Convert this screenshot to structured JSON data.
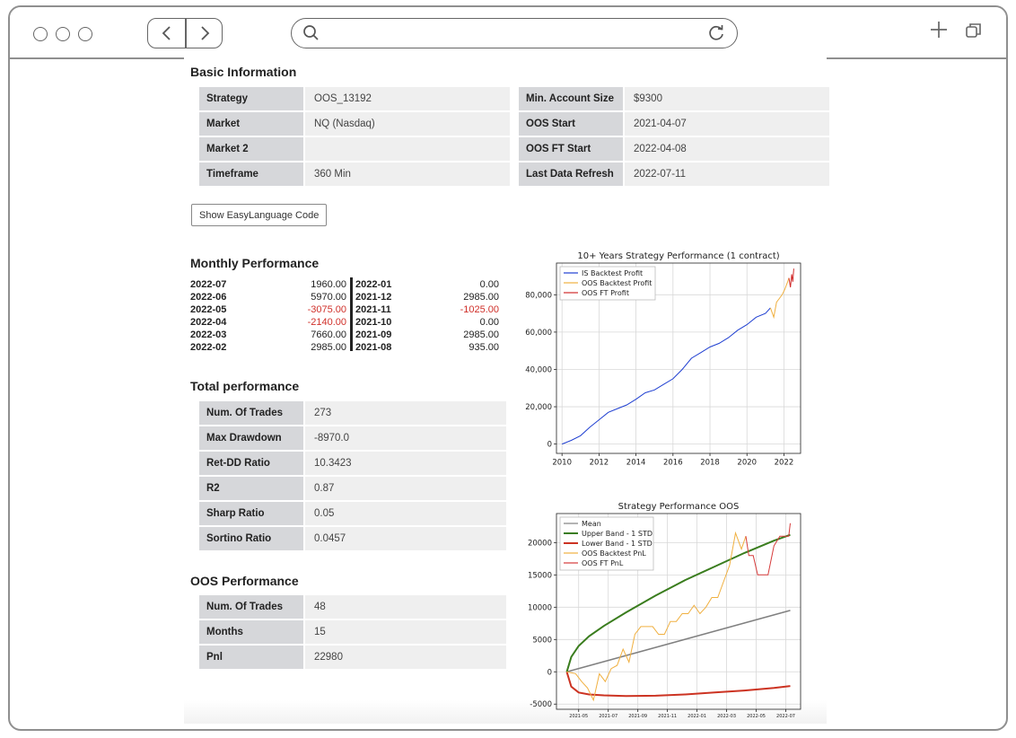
{
  "browser": {},
  "basic_info": {
    "title": "Basic Information",
    "left": [
      {
        "label": "Strategy",
        "value": "OOS_13192"
      },
      {
        "label": "Market",
        "value": "NQ (Nasdaq)"
      },
      {
        "label": "Market 2",
        "value": ""
      },
      {
        "label": "Timeframe",
        "value": "360 Min"
      }
    ],
    "right": [
      {
        "label": "Min. Account Size",
        "value": "$9300"
      },
      {
        "label": "OOS Start",
        "value": "2021-04-07"
      },
      {
        "label": "OOS FT Start",
        "value": "2022-04-08"
      },
      {
        "label": "Last Data Refresh",
        "value": "2022-07-11"
      }
    ],
    "code_button": "Show EasyLanguage Code"
  },
  "monthly": {
    "title": "Monthly Performance",
    "left": [
      {
        "month": "2022-07",
        "value": "1960.00",
        "neg": false
      },
      {
        "month": "2022-06",
        "value": "5970.00",
        "neg": false
      },
      {
        "month": "2022-05",
        "value": "-3075.00",
        "neg": true
      },
      {
        "month": "2022-04",
        "value": "-2140.00",
        "neg": true
      },
      {
        "month": "2022-03",
        "value": "7660.00",
        "neg": false
      },
      {
        "month": "2022-02",
        "value": "2985.00",
        "neg": false
      }
    ],
    "right": [
      {
        "month": "2022-01",
        "value": "0.00",
        "neg": false
      },
      {
        "month": "2021-12",
        "value": "2985.00",
        "neg": false
      },
      {
        "month": "2021-11",
        "value": "-1025.00",
        "neg": true
      },
      {
        "month": "2021-10",
        "value": "0.00",
        "neg": false
      },
      {
        "month": "2021-09",
        "value": "2985.00",
        "neg": false
      },
      {
        "month": "2021-08",
        "value": "935.00",
        "neg": false
      }
    ],
    "neg_color": "#d0302a"
  },
  "total": {
    "title": "Total performance",
    "rows": [
      {
        "label": "Num. Of Trades",
        "value": "273"
      },
      {
        "label": "Max Drawdown",
        "value": "-8970.0"
      },
      {
        "label": "Ret-DD Ratio",
        "value": "10.3423"
      },
      {
        "label": "R2",
        "value": "0.87"
      },
      {
        "label": "Sharp Ratio",
        "value": "0.05"
      },
      {
        "label": "Sortino Ratio",
        "value": "0.0457"
      }
    ]
  },
  "oos": {
    "title": "OOS Performance",
    "rows": [
      {
        "label": "Num. Of Trades",
        "value": "48"
      },
      {
        "label": "Months",
        "value": "15"
      },
      {
        "label": "Pnl",
        "value": "22980"
      }
    ]
  },
  "chart_data": [
    {
      "type": "line",
      "title": "10+ Years Strategy Performance (1 contract)",
      "xlabel": "",
      "ylabel": "",
      "xlim": [
        2009.7,
        2022.9
      ],
      "ylim": [
        -5000,
        97000
      ],
      "x_ticks": [
        2010,
        2012,
        2014,
        2016,
        2018,
        2020,
        2022
      ],
      "y_ticks": [
        0,
        20000,
        40000,
        60000,
        80000
      ],
      "y_tick_labels": [
        "0",
        "20,000",
        "40,000",
        "60,000",
        "80,000"
      ],
      "grid": true,
      "legend": "top-left",
      "series": [
        {
          "name": "IS Backtest Profit",
          "color": "#1f3fd1",
          "x": [
            2010.0,
            2010.5,
            2011.0,
            2011.5,
            2012.0,
            2012.5,
            2013.0,
            2013.5,
            2014.0,
            2014.5,
            2015.0,
            2015.5,
            2016.0,
            2016.5,
            2017.0,
            2017.5,
            2018.0,
            2018.5,
            2019.0,
            2019.5,
            2020.0,
            2020.5,
            2021.0,
            2021.27
          ],
          "y": [
            0,
            2000,
            4500,
            9000,
            13000,
            17000,
            19000,
            21000,
            24000,
            27500,
            29000,
            32000,
            35000,
            40000,
            46000,
            49000,
            52000,
            54000,
            57000,
            61000,
            64000,
            68000,
            70000,
            73000
          ]
        },
        {
          "name": "OOS Backtest Profit",
          "color": "#f0b040",
          "x": [
            2021.27,
            2021.45,
            2021.6,
            2021.75,
            2021.9,
            2022.05,
            2022.2,
            2022.27
          ],
          "y": [
            73000,
            68000,
            76000,
            78000,
            80000,
            83000,
            87000,
            89000
          ]
        },
        {
          "name": "OOS FT Profit",
          "color": "#d02a2a",
          "x": [
            2022.27,
            2022.35,
            2022.42,
            2022.48,
            2022.53
          ],
          "y": [
            89000,
            84000,
            91000,
            87000,
            94000
          ]
        }
      ]
    },
    {
      "type": "line",
      "title": "Strategy Performance OOS",
      "xlabel": "",
      "ylabel": "",
      "xlim": [
        -0.7,
        15.8
      ],
      "ylim": [
        -5800,
        24500
      ],
      "x_ticks": [
        0.8,
        2.8,
        4.8,
        6.8,
        8.8,
        10.8,
        12.8,
        14.8
      ],
      "x_tick_labels": [
        "2021-05",
        "2021-07",
        "2021-09",
        "2021-11",
        "2022-01",
        "2022-03",
        "2022-05",
        "2022-07"
      ],
      "y_ticks": [
        -5000,
        0,
        5000,
        10000,
        15000,
        20000
      ],
      "y_tick_labels": [
        "-5000",
        "0",
        "5000",
        "10000",
        "15000",
        "20000"
      ],
      "grid": true,
      "legend": "top-left",
      "series": [
        {
          "name": "Mean",
          "color": "#808080",
          "x": [
            0,
            15.1
          ],
          "y": [
            0,
            9500
          ]
        },
        {
          "name": "Upper Band - 1 STD",
          "color": "#3a7d1e",
          "x": [
            0,
            0.3,
            0.8,
            1.5,
            2.5,
            4,
            6,
            8,
            10,
            12,
            14,
            15.1
          ],
          "y": [
            0,
            2300,
            4000,
            5500,
            7100,
            9200,
            11800,
            14200,
            16300,
            18400,
            20300,
            21200
          ]
        },
        {
          "name": "Lower Band - 1 STD",
          "color": "#cc3322",
          "x": [
            0,
            0.3,
            0.8,
            1.5,
            2.5,
            4,
            6,
            8,
            10,
            12,
            14,
            15.1
          ],
          "y": [
            0,
            -2300,
            -3200,
            -3500,
            -3650,
            -3750,
            -3700,
            -3500,
            -3200,
            -2900,
            -2500,
            -2200
          ]
        },
        {
          "name": "OOS Backtest PnL",
          "color": "#f0b040",
          "x": [
            0,
            0.6,
            1.0,
            1.4,
            1.8,
            2.2,
            2.6,
            3.0,
            3.4,
            3.8,
            4.2,
            4.6,
            5.0,
            5.4,
            5.8,
            6.2,
            6.6,
            7.0,
            7.4,
            7.8,
            8.2,
            8.6,
            9.0,
            9.4,
            9.8,
            10.2,
            10.6,
            11.0,
            11.4,
            11.8,
            12.1
          ],
          "y": [
            0,
            -300,
            -1500,
            -2500,
            -4400,
            -300,
            -1500,
            500,
            1000,
            3500,
            1500,
            5800,
            7000,
            7000,
            7000,
            5800,
            5800,
            7800,
            7800,
            9000,
            9000,
            10300,
            9000,
            10000,
            11500,
            11500,
            14000,
            16500,
            21500,
            19000,
            21000
          ]
        },
        {
          "name": "OOS FT PnL",
          "color": "#d63a3a",
          "x": [
            12.1,
            12.3,
            12.6,
            12.9,
            13.2,
            13.6,
            14.0,
            14.4,
            14.7,
            15.0,
            15.1
          ],
          "y": [
            21000,
            18000,
            18000,
            15000,
            15000,
            15000,
            19500,
            21000,
            21000,
            21000,
            23000
          ]
        }
      ]
    }
  ]
}
